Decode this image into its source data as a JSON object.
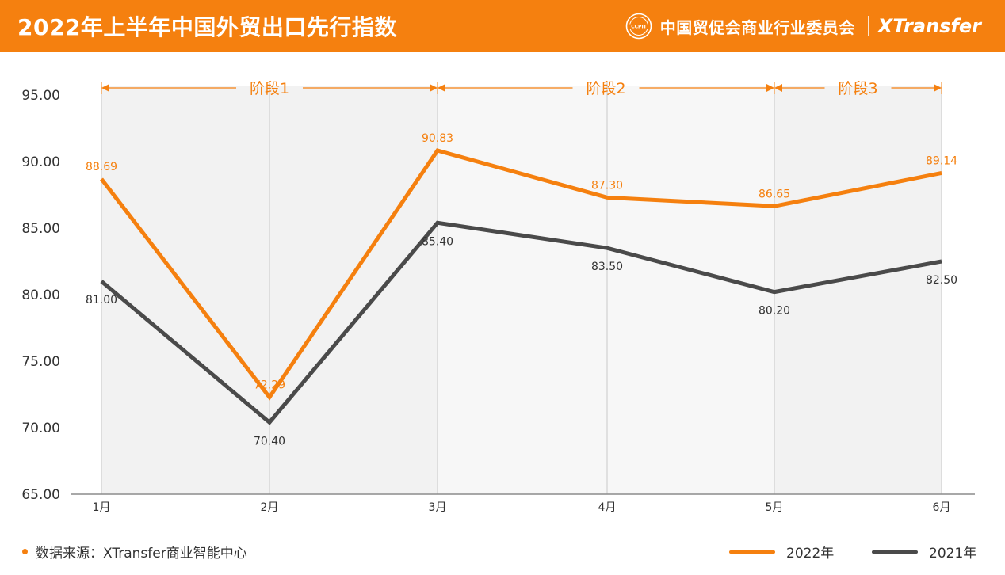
{
  "header": {
    "title": "2022年上半年中国外贸出口先行指数",
    "org_name": "中国贸促会商业行业委员会",
    "brand": "XTransfer",
    "seal_text": "CCPIT"
  },
  "footer": {
    "source": "数据来源：XTransfer商业智能中心"
  },
  "colors": {
    "series_2022": "#f5800f",
    "series_2021": "#4a4a4a",
    "header_bg": "#f5800f"
  },
  "chart_data": {
    "type": "line",
    "title": "2022年上半年中国外贸出口先行指数",
    "categories": [
      "1月",
      "2月",
      "3月",
      "4月",
      "5月",
      "6月"
    ],
    "series": [
      {
        "name": "2022年",
        "values": [
          88.69,
          72.29,
          90.83,
          87.3,
          86.65,
          89.14
        ],
        "labels": [
          "88.69",
          "72.29",
          "90.83",
          "87.30",
          "86.65",
          "89.14"
        ]
      },
      {
        "name": "2021年",
        "values": [
          81.0,
          70.4,
          85.4,
          83.5,
          80.2,
          82.5
        ],
        "labels": [
          "81.00",
          "70.40",
          "85.40",
          "83.50",
          "80.20",
          "82.50"
        ]
      }
    ],
    "ylim": [
      65,
      95
    ],
    "yticks": [
      "65.00",
      "70.00",
      "75.00",
      "80.00",
      "85.00",
      "90.00",
      "95.00"
    ],
    "phases": [
      {
        "label": "阶段1",
        "from": 0,
        "to": 2
      },
      {
        "label": "阶段2",
        "from": 2,
        "to": 4
      },
      {
        "label": "阶段3",
        "from": 4,
        "to": 5
      }
    ],
    "legend_position": "bottom-right",
    "grid": "vertical"
  }
}
